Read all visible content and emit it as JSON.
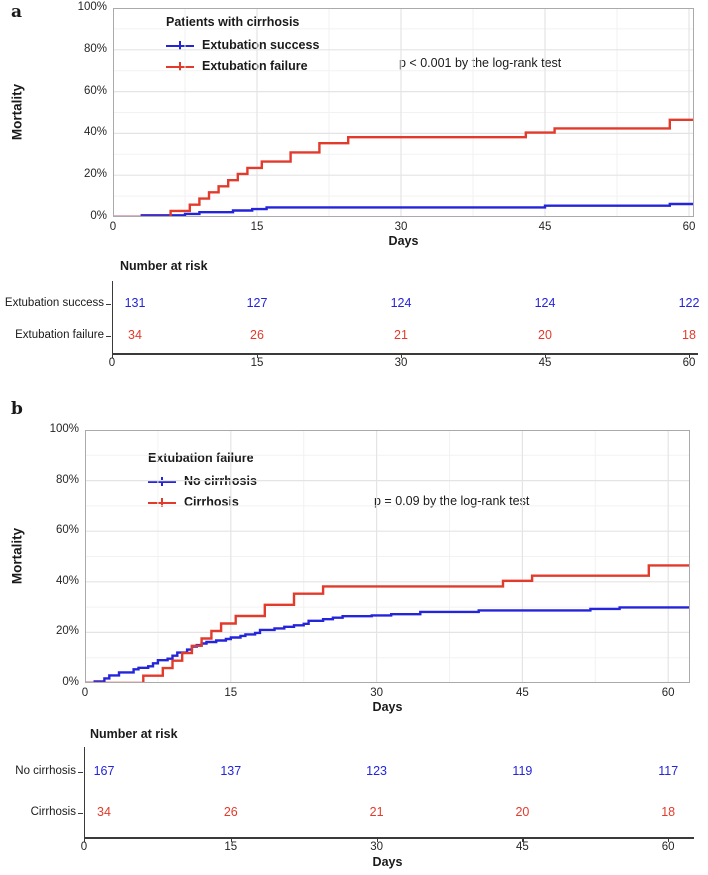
{
  "figure": {
    "background": "#ffffff"
  },
  "colors": {
    "blue": "#2424DB",
    "red": "#E23B2C",
    "grid_major": "#E4E4E4",
    "grid_minor": "#F2F2F2",
    "panel_border": "#AAAAAA",
    "table_axis": "#3A3A3A",
    "text": "#1A1A1A"
  },
  "chart_data": [
    {
      "panel_letter": "a",
      "type": "line",
      "subtype": "kaplan-meier-step",
      "ylabel": "Mortality",
      "xlabel": "Days",
      "x_range": [
        0,
        62
      ],
      "y_range_pct": [
        0,
        100
      ],
      "x_ticks": [
        0,
        15,
        30,
        45,
        60
      ],
      "x_tick_labels": [
        "0",
        "15",
        "30",
        "45",
        "60"
      ],
      "y_ticks_pct": [
        0,
        20,
        40,
        60,
        80,
        100
      ],
      "y_tick_labels": [
        "0%",
        "20%",
        "40%",
        "60%",
        "80%",
        "100%"
      ],
      "grid": "on",
      "legend_position": "top-left-inset",
      "legend_title": "Patients with cirrhosis",
      "legend_items": [
        {
          "label": "Extubation success",
          "color": "blue"
        },
        {
          "label": "Extubation failure",
          "color": "red"
        }
      ],
      "p_text": "p < 0.001 by the log-rank test",
      "series": [
        {
          "name": "Extubation success",
          "color": "blue",
          "steps_day_pct": [
            [
              0,
              0
            ],
            [
              3,
              0.8
            ],
            [
              7.5,
              1.5
            ],
            [
              9,
              2.3
            ],
            [
              12.5,
              3.1
            ],
            [
              14.5,
              3.8
            ],
            [
              16,
              4.6
            ],
            [
              45,
              5.4
            ],
            [
              58,
              6.2
            ],
            [
              62,
              6.2
            ]
          ]
        },
        {
          "name": "Extubation failure",
          "color": "red",
          "steps_day_pct": [
            [
              0,
              0
            ],
            [
              6,
              2.9
            ],
            [
              8,
              5.9
            ],
            [
              9,
              8.8
            ],
            [
              10,
              11.8
            ],
            [
              11,
              14.7
            ],
            [
              12,
              17.6
            ],
            [
              13,
              20.6
            ],
            [
              14,
              23.5
            ],
            [
              15.5,
              26.5
            ],
            [
              18.5,
              30.9
            ],
            [
              21.5,
              35.3
            ],
            [
              24.5,
              38.2
            ],
            [
              43,
              40.4
            ],
            [
              46,
              42.4
            ],
            [
              58,
              46.5
            ],
            [
              62,
              46.5
            ]
          ]
        }
      ],
      "risk_table": {
        "title": "Number at risk",
        "time_points": [
          0,
          15,
          30,
          45,
          60
        ],
        "x_tick_labels": [
          "0",
          "15",
          "30",
          "45",
          "60"
        ],
        "xlabel": "",
        "rows": [
          {
            "label": "Extubation success",
            "color": "blue",
            "values": [
              "131",
              "127",
              "124",
              "124",
              "122"
            ]
          },
          {
            "label": "Extubation failure",
            "color": "red",
            "values": [
              "34",
              "26",
              "21",
              "20",
              "18"
            ]
          }
        ]
      }
    },
    {
      "panel_letter": "b",
      "type": "line",
      "subtype": "kaplan-meier-step",
      "ylabel": "Mortality",
      "xlabel": "Days",
      "x_range": [
        0,
        62
      ],
      "y_range_pct": [
        0,
        100
      ],
      "x_ticks": [
        0,
        15,
        30,
        45,
        60
      ],
      "x_tick_labels": [
        "0",
        "15",
        "30",
        "45",
        "60"
      ],
      "y_ticks_pct": [
        0,
        20,
        40,
        60,
        80,
        100
      ],
      "y_tick_labels": [
        "0%",
        "20%",
        "40%",
        "60%",
        "80%",
        "100%"
      ],
      "grid": "on",
      "legend_position": "top-left-inset",
      "legend_title": "Extubation failure",
      "legend_items": [
        {
          "label": "No cirrhosis",
          "color": "blue"
        },
        {
          "label": "Cirrhosis",
          "color": "red"
        }
      ],
      "p_text": "p = 0.09 by the log-rank test",
      "series": [
        {
          "name": "No cirrhosis",
          "color": "blue",
          "steps_day_pct": [
            [
              0,
              0
            ],
            [
              1,
              0.6
            ],
            [
              2,
              1.8
            ],
            [
              2.5,
              3
            ],
            [
              3.5,
              4.2
            ],
            [
              5,
              5.4
            ],
            [
              5.5,
              6
            ],
            [
              6.5,
              6.6
            ],
            [
              7,
              7.8
            ],
            [
              7.5,
              9
            ],
            [
              8.5,
              9.6
            ],
            [
              9,
              10.8
            ],
            [
              9.5,
              12
            ],
            [
              10.5,
              13.2
            ],
            [
              11,
              14.4
            ],
            [
              11.5,
              15
            ],
            [
              12,
              15.6
            ],
            [
              12.5,
              16.2
            ],
            [
              13.5,
              16.8
            ],
            [
              14.5,
              17.4
            ],
            [
              15,
              18
            ],
            [
              16,
              18.6
            ],
            [
              16.5,
              19.2
            ],
            [
              17.5,
              19.8
            ],
            [
              18,
              21
            ],
            [
              19.5,
              21.6
            ],
            [
              20.5,
              22.2
            ],
            [
              21.5,
              22.8
            ],
            [
              22.5,
              23.4
            ],
            [
              23,
              24.6
            ],
            [
              24.5,
              25.2
            ],
            [
              25.5,
              25.8
            ],
            [
              26.5,
              26.4
            ],
            [
              29.5,
              26.7
            ],
            [
              31.5,
              27.2
            ],
            [
              34.5,
              28.1
            ],
            [
              40.5,
              28.7
            ],
            [
              52,
              29.3
            ],
            [
              55,
              29.9
            ],
            [
              62,
              29.9
            ]
          ]
        },
        {
          "name": "Cirrhosis",
          "color": "red",
          "steps_day_pct": [
            [
              0,
              0
            ],
            [
              6,
              2.9
            ],
            [
              8,
              5.9
            ],
            [
              9,
              8.8
            ],
            [
              10,
              11.8
            ],
            [
              11,
              14.7
            ],
            [
              12,
              17.6
            ],
            [
              13,
              20.6
            ],
            [
              14,
              23.5
            ],
            [
              15.5,
              26.5
            ],
            [
              18.5,
              30.9
            ],
            [
              21.5,
              35.3
            ],
            [
              24.5,
              38.2
            ],
            [
              43,
              40.4
            ],
            [
              46,
              42.4
            ],
            [
              58,
              46.5
            ],
            [
              62,
              46.5
            ]
          ]
        }
      ],
      "risk_table": {
        "title": "Number at risk",
        "time_points": [
          0,
          15,
          30,
          45,
          60
        ],
        "x_tick_labels": [
          "0",
          "15",
          "30",
          "45",
          "60"
        ],
        "xlabel": "Days",
        "rows": [
          {
            "label": "No cirrhosis",
            "color": "blue",
            "values": [
              "167",
              "137",
              "123",
              "119",
              "117"
            ]
          },
          {
            "label": "Cirrhosis",
            "color": "red",
            "values": [
              "34",
              "26",
              "21",
              "20",
              "18"
            ]
          }
        ]
      }
    }
  ]
}
